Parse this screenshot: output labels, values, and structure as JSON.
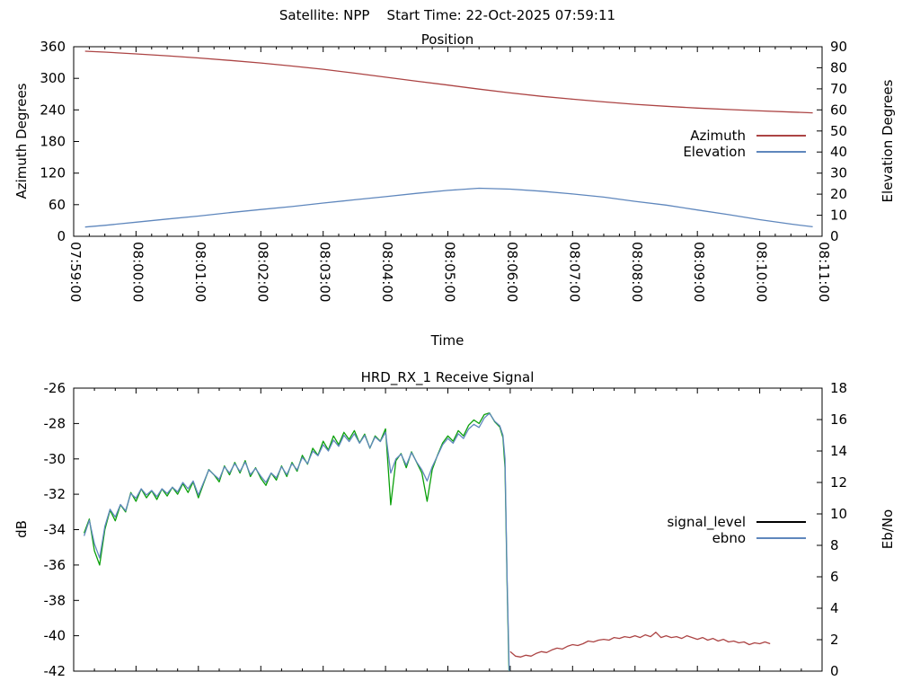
{
  "header": {
    "title": "Satellite: NPP    Start Time: 22-Oct-2025 07:59:11"
  },
  "colors": {
    "background": "#ffffff",
    "axis": "#000000",
    "azimuth": "#ac4444",
    "elevation": "#5f87bd",
    "signal_level": "#0aa00a",
    "ebno": "#5f87bd",
    "signal_floor": "#ac4444",
    "legend_signal_sample": "#000000"
  },
  "chart_data": [
    {
      "type": "line",
      "title": "Position",
      "xlabel": "Time",
      "ylabel_left": "Azimuth Degrees",
      "ylabel_right": "Elevation Degrees",
      "xlim": [
        0,
        720
      ],
      "x_minor_step": 15,
      "x_ticks": [
        {
          "t": 0,
          "label": "07:59:00"
        },
        {
          "t": 60,
          "label": "08:00:00"
        },
        {
          "t": 120,
          "label": "08:01:00"
        },
        {
          "t": 180,
          "label": "08:02:00"
        },
        {
          "t": 240,
          "label": "08:03:00"
        },
        {
          "t": 300,
          "label": "08:04:00"
        },
        {
          "t": 360,
          "label": "08:05:00"
        },
        {
          "t": 420,
          "label": "08:06:00"
        },
        {
          "t": 480,
          "label": "08:07:00"
        },
        {
          "t": 540,
          "label": "08:08:00"
        },
        {
          "t": 600,
          "label": "08:09:00"
        },
        {
          "t": 660,
          "label": "08:10:00"
        },
        {
          "t": 720,
          "label": "08:11:00"
        }
      ],
      "ylim_left": [
        0,
        360
      ],
      "yticks_left": [
        0,
        60,
        120,
        180,
        240,
        300,
        360
      ],
      "ylim_right": [
        0,
        90
      ],
      "yticks_right": [
        0,
        10,
        20,
        30,
        40,
        50,
        60,
        70,
        80,
        90
      ],
      "legend": [
        {
          "label": "Azimuth",
          "color": "#ac4444"
        },
        {
          "label": "Elevation",
          "color": "#5f87bd"
        }
      ],
      "series": [
        {
          "name": "azimuth",
          "axis": "left",
          "color": "#ac4444",
          "x": [
            11,
            30,
            60,
            90,
            120,
            150,
            180,
            210,
            240,
            270,
            300,
            330,
            360,
            390,
            420,
            450,
            480,
            510,
            540,
            570,
            600,
            630,
            660,
            690,
            711
          ],
          "y": [
            351.4,
            349.8,
            346.3,
            342.7,
            338.6,
            334.0,
            329.1,
            323.3,
            317.1,
            309.8,
            302.1,
            294.5,
            287.2,
            279.4,
            272.3,
            265.9,
            260.3,
            255.3,
            250.6,
            246.9,
            243.4,
            240.7,
            238.2,
            235.9,
            234.5
          ]
        },
        {
          "name": "elevation",
          "axis": "right",
          "color": "#5f87bd",
          "x": [
            11,
            30,
            60,
            90,
            120,
            150,
            180,
            210,
            240,
            270,
            300,
            330,
            360,
            390,
            420,
            450,
            480,
            510,
            540,
            570,
            600,
            630,
            660,
            690,
            711
          ],
          "y": [
            4.4,
            5.2,
            6.7,
            8.2,
            9.6,
            11.2,
            12.7,
            14.1,
            15.8,
            17.3,
            18.8,
            20.4,
            21.8,
            22.8,
            22.4,
            21.4,
            20.1,
            18.6,
            16.6,
            14.8,
            12.5,
            10.3,
            7.9,
            5.8,
            4.5
          ]
        }
      ]
    },
    {
      "type": "line",
      "title": "HRD_RX_1 Receive Signal",
      "ylabel_left": "dB",
      "ylabel_right": "Eb/No",
      "xlim": [
        0,
        720
      ],
      "x_minor_step": 20,
      "x_tick_step": 60,
      "x_labels_visible": false,
      "ylim_left": [
        -42,
        -26
      ],
      "yticks_left": [
        -42,
        -40,
        -38,
        -36,
        -34,
        -32,
        -30,
        -28,
        -26
      ],
      "ylim_right": [
        0,
        18
      ],
      "yticks_right": [
        0,
        2,
        4,
        6,
        8,
        10,
        12,
        14,
        16,
        18
      ],
      "legend": [
        {
          "label": "signal_level",
          "color": "#000000"
        },
        {
          "label": "ebno",
          "color": "#5f87bd"
        }
      ],
      "series": [
        {
          "name": "signal_level",
          "axis": "left",
          "color": "#0aa00a",
          "x": [
            10,
            15,
            20,
            25,
            30,
            35,
            40,
            45,
            50,
            55,
            60,
            65,
            70,
            75,
            80,
            85,
            90,
            95,
            100,
            105,
            110,
            115,
            120,
            125,
            130,
            135,
            140,
            145,
            150,
            155,
            160,
            165,
            170,
            175,
            180,
            185,
            190,
            195,
            200,
            205,
            210,
            215,
            220,
            225,
            230,
            235,
            240,
            245,
            250,
            255,
            260,
            265,
            270,
            275,
            280,
            285,
            290,
            295,
            300,
            305,
            310,
            315,
            320,
            325,
            330,
            335,
            340,
            345,
            350,
            355,
            360,
            365,
            370,
            375,
            380,
            385,
            390,
            395,
            400,
            405,
            410,
            413,
            415,
            417,
            419
          ],
          "y": [
            -34.2,
            -33.4,
            -35.2,
            -36.0,
            -34.0,
            -32.9,
            -33.5,
            -32.6,
            -33.0,
            -31.9,
            -32.4,
            -31.7,
            -32.2,
            -31.8,
            -32.3,
            -31.7,
            -32.1,
            -31.6,
            -32.0,
            -31.4,
            -31.9,
            -31.3,
            -32.2,
            -31.4,
            -30.6,
            -30.9,
            -31.3,
            -30.4,
            -30.9,
            -30.2,
            -30.8,
            -30.1,
            -31.0,
            -30.5,
            -31.1,
            -31.5,
            -30.8,
            -31.2,
            -30.4,
            -31.0,
            -30.2,
            -30.7,
            -29.8,
            -30.3,
            -29.4,
            -29.8,
            -29.0,
            -29.5,
            -28.7,
            -29.2,
            -28.5,
            -28.9,
            -28.4,
            -29.1,
            -28.6,
            -29.4,
            -28.7,
            -29.0,
            -28.3,
            -32.6,
            -30.1,
            -29.7,
            -30.5,
            -29.6,
            -30.2,
            -30.8,
            -32.4,
            -30.6,
            -29.8,
            -29.1,
            -28.7,
            -29.0,
            -28.4,
            -28.7,
            -28.1,
            -27.8,
            -28.0,
            -27.5,
            -27.4,
            -27.9,
            -28.2,
            -28.8,
            -30.5,
            -37.0,
            -42.6
          ]
        },
        {
          "name": "ebno",
          "axis": "right",
          "color": "#5f87bd",
          "x": [
            10,
            15,
            20,
            25,
            30,
            35,
            40,
            45,
            50,
            55,
            60,
            65,
            70,
            75,
            80,
            85,
            90,
            95,
            100,
            105,
            110,
            115,
            120,
            125,
            130,
            135,
            140,
            145,
            150,
            155,
            160,
            165,
            170,
            175,
            180,
            185,
            190,
            195,
            200,
            205,
            210,
            215,
            220,
            225,
            230,
            235,
            240,
            245,
            250,
            255,
            260,
            265,
            270,
            275,
            280,
            285,
            290,
            295,
            300,
            305,
            310,
            315,
            320,
            325,
            330,
            335,
            340,
            345,
            350,
            355,
            360,
            365,
            370,
            375,
            380,
            385,
            390,
            395,
            400,
            405,
            410,
            413,
            415,
            417,
            419
          ],
          "y": [
            8.6,
            9.6,
            8.1,
            7.2,
            9.2,
            10.3,
            9.8,
            10.6,
            10.2,
            11.3,
            11.0,
            11.6,
            11.2,
            11.5,
            11.1,
            11.6,
            11.3,
            11.7,
            11.4,
            12.0,
            11.6,
            12.1,
            11.2,
            12.0,
            12.8,
            12.5,
            12.2,
            13.0,
            12.6,
            13.2,
            12.7,
            13.3,
            12.5,
            12.9,
            12.4,
            12.0,
            12.6,
            12.3,
            13.0,
            12.5,
            13.2,
            12.8,
            13.6,
            13.2,
            14.0,
            13.7,
            14.4,
            14.0,
            14.7,
            14.3,
            15.0,
            14.6,
            15.1,
            14.5,
            15.0,
            14.2,
            14.9,
            14.6,
            15.2,
            12.6,
            13.5,
            13.8,
            13.1,
            13.9,
            13.3,
            12.8,
            12.1,
            13.0,
            13.7,
            14.4,
            14.8,
            14.5,
            15.1,
            14.8,
            15.4,
            15.7,
            15.5,
            16.1,
            16.4,
            15.9,
            15.6,
            15.0,
            13.5,
            6.0,
            0.0
          ]
        },
        {
          "name": "signal_level_noise_floor",
          "axis": "left",
          "color": "#ac4444",
          "x": [
            420,
            425,
            430,
            435,
            440,
            445,
            450,
            455,
            460,
            465,
            470,
            475,
            480,
            485,
            490,
            495,
            500,
            505,
            510,
            515,
            520,
            525,
            530,
            535,
            540,
            545,
            550,
            555,
            560,
            565,
            570,
            575,
            580,
            585,
            590,
            595,
            600,
            605,
            610,
            615,
            620,
            625,
            630,
            635,
            640,
            645,
            650,
            655,
            660,
            665,
            670
          ],
          "y": [
            -40.9,
            -41.15,
            -41.2,
            -41.1,
            -41.15,
            -41.0,
            -40.9,
            -40.95,
            -40.8,
            -40.7,
            -40.75,
            -40.6,
            -40.5,
            -40.55,
            -40.45,
            -40.3,
            -40.35,
            -40.25,
            -40.2,
            -40.25,
            -40.1,
            -40.15,
            -40.05,
            -40.1,
            -40.0,
            -40.1,
            -39.95,
            -40.05,
            -39.8,
            -40.1,
            -40.0,
            -40.1,
            -40.05,
            -40.15,
            -40.0,
            -40.1,
            -40.2,
            -40.1,
            -40.25,
            -40.15,
            -40.3,
            -40.2,
            -40.35,
            -40.3,
            -40.4,
            -40.35,
            -40.5,
            -40.4,
            -40.45,
            -40.35,
            -40.45
          ]
        }
      ]
    }
  ]
}
